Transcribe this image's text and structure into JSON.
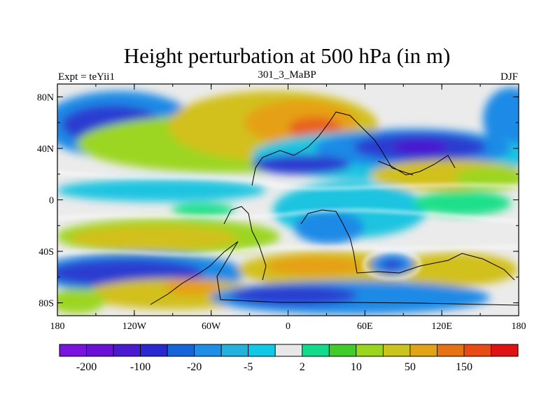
{
  "map": {
    "title": "Height perturbation at 500 hPa (in m)",
    "left_label": "Expt = teYii1",
    "center_label": "301_3_MaBP",
    "right_label": "DJF",
    "lon_ticks": [
      "180",
      "120W",
      "60W",
      "0",
      "60E",
      "120E",
      "180"
    ],
    "lat_ticks": [
      "80N",
      "40N",
      "0",
      "40S",
      "80S"
    ],
    "lon_range": [
      -180,
      180
    ],
    "lat_range": [
      -90,
      90
    ]
  },
  "colorbar": {
    "colors": [
      "#7a12e0",
      "#6a10d8",
      "#4a1ad0",
      "#2a28d0",
      "#1464dc",
      "#1d8fe6",
      "#22b2dd",
      "#11c8e6",
      "#e8e8e8",
      "#12dc8c",
      "#40cc2a",
      "#9ad61e",
      "#ccc41a",
      "#e0a414",
      "#e67214",
      "#ea4a14",
      "#e01212"
    ],
    "labels": [
      "-200",
      "-100",
      "-20",
      "-5",
      "2",
      "10",
      "50",
      "150"
    ]
  },
  "palette": {
    "background": "#ebebeb",
    "neg_light": "#1fc4e0",
    "neg_mid": "#1a8ae6",
    "neg_strong": "#2a3ed0",
    "neg_extreme": "#4a18d0",
    "pos_light": "#1ee08a",
    "pos_mid": "#9cd620",
    "pos_strong": "#d2c01c",
    "pos_hot": "#e6a014",
    "pos_extreme": "#e8641a"
  }
}
